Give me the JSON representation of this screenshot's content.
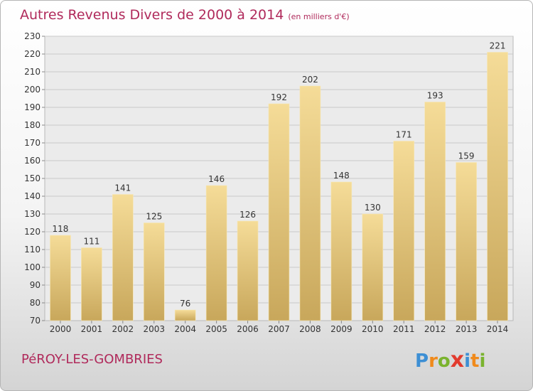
{
  "header": {
    "title": "Autres Revenus Divers de 2000 à 2014",
    "unit": "(en milliers d'€)"
  },
  "footer": {
    "commune": "PéROY-LES-GOMBRIES",
    "logo": {
      "letters": [
        "P",
        "r",
        "o",
        "x",
        "i",
        "t",
        "i"
      ],
      "colors": [
        "#3d8fd4",
        "#f08a1c",
        "#7ab32e",
        "#e23b2e",
        "#3d8fd4",
        "#f08a1c",
        "#7ab32e"
      ]
    }
  },
  "chart_data": {
    "type": "bar",
    "title": "Autres Revenus Divers de 2000 à 2014",
    "ylabel": "",
    "xlabel": "",
    "categories": [
      "2000",
      "2001",
      "2002",
      "2003",
      "2004",
      "2005",
      "2006",
      "2007",
      "2008",
      "2009",
      "2010",
      "2011",
      "2012",
      "2013",
      "2014"
    ],
    "values": [
      118,
      111,
      141,
      125,
      76,
      146,
      126,
      192,
      202,
      148,
      130,
      171,
      193,
      159,
      221
    ],
    "ylim": [
      70,
      230
    ],
    "ytick_step": 10,
    "grid": true,
    "bar_color_top": "#f5dc98",
    "bar_color_bottom": "#c8a75b"
  }
}
